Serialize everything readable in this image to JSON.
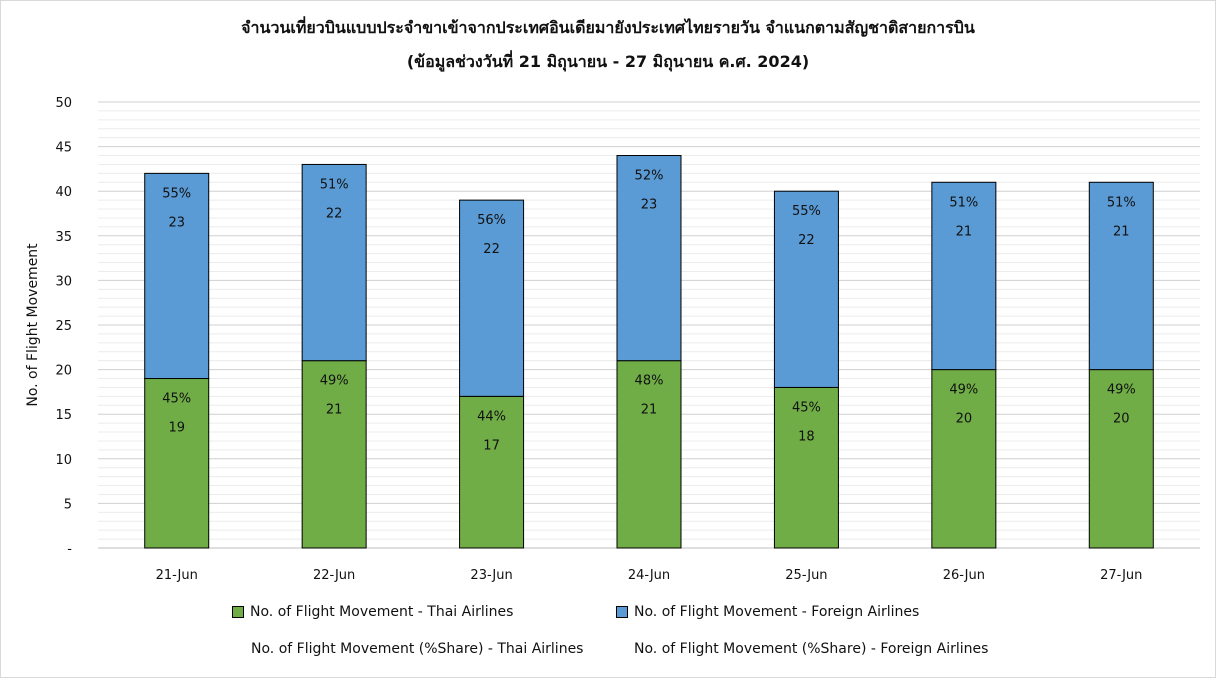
{
  "chart_data": {
    "type": "bar",
    "stacked": true,
    "title": "จำนวนเที่ยวบินแบบประจำขาเข้าจากประเทศอินเดียมายังประเทศไทยรายวัน  จำแนกตามสัญชาติสายการบิน",
    "subtitle": "(ข้อมูลช่วงวันที่ 21 มิถุนายน - 27 มิถุนายน ค.ศ. 2024)",
    "xlabel": "",
    "ylabel": "No. of Flight Movement",
    "ylim": [
      0,
      50
    ],
    "yticks": [
      "-",
      "5",
      "10",
      "15",
      "20",
      "25",
      "30",
      "35",
      "40",
      "45",
      "50"
    ],
    "grid": true,
    "legend_position": "bottom",
    "categories": [
      "21-Jun",
      "22-Jun",
      "23-Jun",
      "24-Jun",
      "25-Jun",
      "26-Jun",
      "27-Jun"
    ],
    "series": [
      {
        "name": "No. of Flight Movement - Thai Airlines",
        "color": "#70ad47",
        "values": [
          19,
          21,
          17,
          21,
          18,
          20,
          20
        ]
      },
      {
        "name": "No. of Flight Movement - Foreign Airlines",
        "color": "#5b9bd5",
        "values": [
          23,
          22,
          22,
          23,
          22,
          21,
          21
        ]
      }
    ],
    "share_series": [
      {
        "name": "No. of Flight Movement (%Share) - Thai Airlines",
        "labels": [
          "45%",
          "49%",
          "44%",
          "48%",
          "45%",
          "49%",
          "49%"
        ]
      },
      {
        "name": "No. of Flight Movement (%Share) - Foreign Airlines",
        "labels": [
          "55%",
          "51%",
          "56%",
          "52%",
          "55%",
          "51%",
          "51%"
        ]
      }
    ]
  }
}
